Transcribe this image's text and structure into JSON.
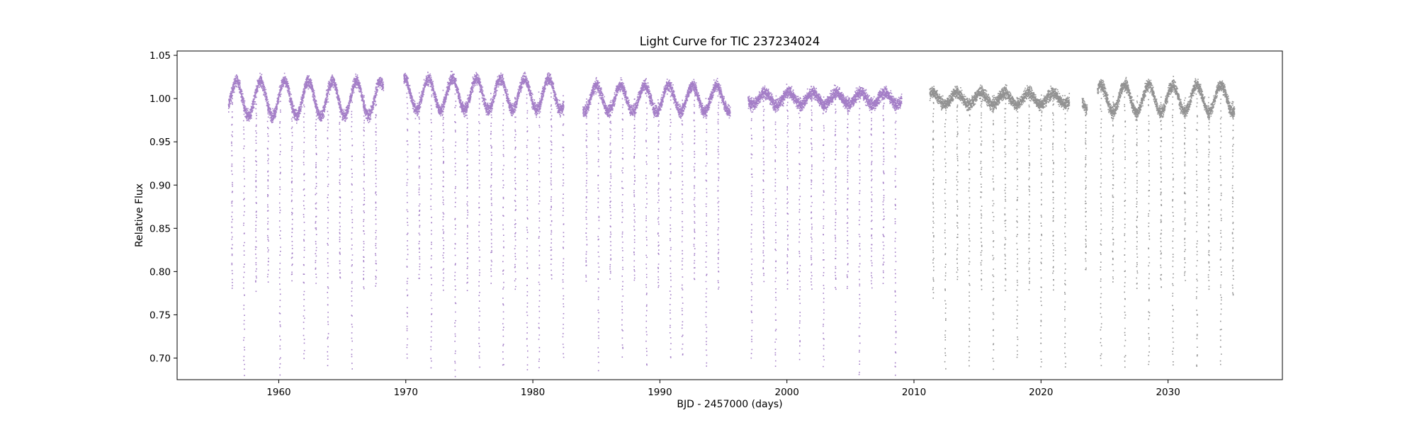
{
  "chart_data": {
    "type": "scatter",
    "title": "Light Curve for TIC 237234024",
    "xlabel": "BJD - 2457000 (days)",
    "ylabel": "Relative Flux",
    "xlim": [
      1952,
      2039
    ],
    "ylim": [
      0.675,
      1.055
    ],
    "xticks": [
      1960,
      1970,
      1980,
      1990,
      2000,
      2010,
      2020,
      2030
    ],
    "xtick_labels": [
      "1960",
      "1970",
      "1980",
      "1990",
      "2000",
      "2010",
      "2020",
      "2030"
    ],
    "yticks": [
      0.7,
      0.75,
      0.8,
      0.85,
      0.9,
      0.95,
      1.0,
      1.05
    ],
    "ytick_labels": [
      "0.70",
      "0.75",
      "0.80",
      "0.85",
      "0.90",
      "0.95",
      "1.00",
      "1.05"
    ],
    "grid": false,
    "legend": "none",
    "eclipse_period_days": 1.8875,
    "series": [
      {
        "color": "#9467bd",
        "segments": [
          {
            "x": [
              1956.0,
              1968.2
            ],
            "baseline": 1.0,
            "variation_amplitude": 0.02,
            "variation_period_days": 1.89
          },
          {
            "x": [
              1969.8,
              1982.4
            ],
            "baseline": 1.005,
            "variation_amplitude": 0.018,
            "variation_period_days": 1.89
          },
          {
            "x": [
              1983.9,
              1995.5
            ],
            "baseline": 1.0,
            "variation_amplitude": 0.015,
            "variation_period_days": 1.89
          },
          {
            "x": [
              1996.9,
              2009.0
            ],
            "baseline": 1.0,
            "variation_amplitude": 0.007,
            "variation_period_days": 1.89
          }
        ],
        "eclipse_depths": [
          0.78,
          0.68,
          0.78,
          0.79,
          0.68,
          0.79,
          0.7,
          0.79,
          0.69,
          0.79,
          0.69,
          0.78,
          0.78,
          0.7,
          0.79,
          0.69,
          0.78,
          0.68,
          0.78,
          0.69,
          0.79,
          0.69,
          0.78,
          0.69,
          0.69,
          0.79,
          0.7,
          0.79,
          0.69,
          0.79,
          0.7,
          0.79,
          0.69,
          0.78,
          0.7,
          0.7,
          0.79,
          0.69,
          0.78,
          0.7,
          0.79,
          0.69,
          0.78,
          0.7,
          0.78,
          0.69,
          0.78
        ]
      },
      {
        "color": "#7f7f7f",
        "segments": [
          {
            "x": [
              2011.2,
              2022.2
            ],
            "baseline": 1.0,
            "variation_amplitude": 0.007,
            "variation_period_days": 1.89
          },
          {
            "x": [
              2023.2,
              2023.6
            ],
            "baseline": 0.995,
            "variation_amplitude": 0.008,
            "variation_period_days": 1.89
          },
          {
            "x": [
              2024.4,
              2035.2
            ],
            "baseline": 1.0,
            "variation_amplitude": 0.016,
            "variation_period_days": 1.89
          }
        ],
        "eclipse_depths": [
          0.77,
          0.69,
          0.79,
          0.69,
          0.78,
          0.69,
          0.78,
          0.7,
          0.78,
          0.69,
          0.78,
          0.69,
          0.8,
          0.69,
          0.79,
          0.69,
          0.78,
          0.69,
          0.78,
          0.69,
          0.79,
          0.69,
          0.78,
          0.69
        ]
      }
    ]
  }
}
